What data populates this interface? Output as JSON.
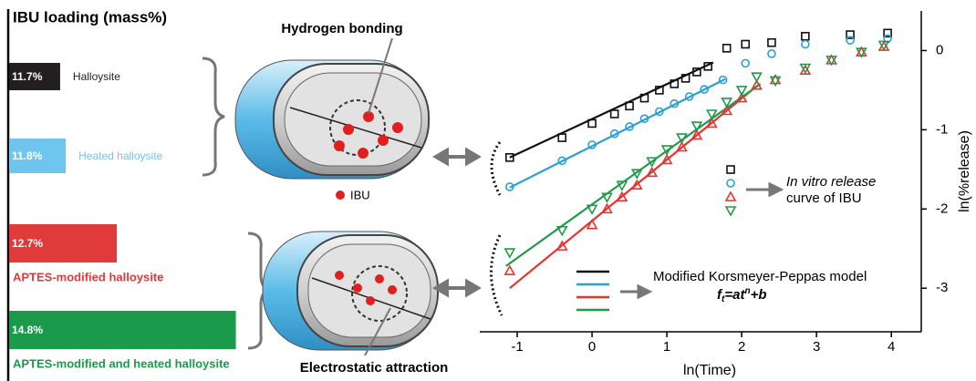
{
  "chart_data": [
    {
      "type": "bar",
      "orientation": "horizontal",
      "title": "IBU loading (mass%)",
      "categories": [
        "Halloysite",
        "Heated halloysite",
        "APTES-modified halloysite",
        "APTES-modified and heated halloysite"
      ],
      "values": [
        11.7,
        11.8,
        12.7,
        14.8
      ],
      "value_labels": [
        "11.7%",
        "11.8%",
        "12.7%",
        "14.8%"
      ],
      "colors": [
        "#231f20",
        "#6ec6ef",
        "#e03a3a",
        "#1a9a4a"
      ],
      "xlim": [
        10.8,
        15
      ]
    },
    {
      "type": "scatter",
      "x_label": "ln(Time)",
      "y_label": "ln(%release)",
      "xlim": [
        -1.5,
        4.4
      ],
      "ylim": [
        -3.55,
        0.5
      ],
      "xticks": [
        -1,
        0,
        1,
        2,
        3,
        4
      ],
      "yticks": [
        -3,
        -2,
        -1,
        0
      ],
      "series": [
        {
          "marker": "square",
          "color": "#111111",
          "x": [
            -1.1,
            -0.4,
            0,
            0.3,
            0.5,
            0.7,
            0.9,
            1.1,
            1.25,
            1.4,
            1.55,
            1.8,
            2.05,
            2.4,
            2.85,
            3.45,
            3.95
          ],
          "values": [
            -1.35,
            -1.1,
            -0.92,
            -0.8,
            -0.7,
            -0.6,
            -0.5,
            -0.42,
            -0.35,
            -0.27,
            -0.2,
            0.03,
            0.08,
            0.1,
            0.18,
            0.2,
            0.22
          ]
        },
        {
          "marker": "circle",
          "color": "#2a9fd8",
          "x": [
            -1.1,
            -0.4,
            0,
            0.3,
            0.5,
            0.7,
            0.9,
            1.1,
            1.3,
            1.5,
            1.75,
            2.05,
            2.4,
            2.85,
            3.45,
            3.95
          ],
          "values": [
            -1.72,
            -1.39,
            -1.19,
            -1.05,
            -0.96,
            -0.86,
            -0.77,
            -0.67,
            -0.58,
            -0.49,
            -0.37,
            -0.16,
            -0.04,
            0.08,
            0.13,
            0.15
          ]
        },
        {
          "marker": "triangle-up",
          "color": "#e8322e",
          "x": [
            -1.1,
            -0.4,
            0,
            0.2,
            0.4,
            0.6,
            0.8,
            1.0,
            1.2,
            1.4,
            1.6,
            1.8,
            2.0,
            2.2,
            2.45,
            2.85,
            3.2,
            3.6,
            3.9
          ],
          "values": [
            -2.78,
            -2.47,
            -2.2,
            -2.0,
            -1.85,
            -1.7,
            -1.54,
            -1.38,
            -1.22,
            -1.07,
            -0.92,
            -0.76,
            -0.6,
            -0.44,
            -0.37,
            -0.25,
            -0.12,
            -0.02,
            0.05
          ]
        },
        {
          "marker": "triangle-down",
          "color": "#1f9a48",
          "x": [
            -1.1,
            -0.4,
            0,
            0.2,
            0.4,
            0.6,
            0.8,
            1.0,
            1.2,
            1.4,
            1.6,
            1.8,
            2.0,
            2.2,
            2.45,
            2.85,
            3.2,
            3.6,
            3.9
          ],
          "values": [
            -2.55,
            -2.27,
            -2.0,
            -1.85,
            -1.7,
            -1.55,
            -1.4,
            -1.25,
            -1.1,
            -0.95,
            -0.8,
            -0.65,
            -0.5,
            -0.33,
            -0.38,
            -0.22,
            -0.12,
            -0.02,
            0.07
          ]
        }
      ],
      "fits": [
        {
          "color": "#111111",
          "x": [
            -1.1,
            1.62
          ],
          "values": [
            -1.35,
            -0.15
          ]
        },
        {
          "color": "#2a9fd8",
          "x": [
            -1.1,
            1.78
          ],
          "values": [
            -1.73,
            -0.36
          ]
        },
        {
          "color": "#e8322e",
          "x": [
            -1.1,
            2.2
          ],
          "values": [
            -3.0,
            -0.45
          ]
        },
        {
          "color": "#1f9a48",
          "x": [
            -1.15,
            2.25
          ],
          "values": [
            -2.72,
            -0.42
          ]
        }
      ],
      "markers_label": [
        "In vitro release",
        "curve of IBU"
      ],
      "fits_label": "Modified Korsmeyer-Peppas model",
      "equation": [
        "f",
        "t",
        "=at",
        "n",
        "+b"
      ]
    }
  ],
  "diagram": {
    "top_label": "Hydrogen bonding",
    "legend_label": "IBU",
    "bottom_label": "Electrostatic attraction"
  }
}
